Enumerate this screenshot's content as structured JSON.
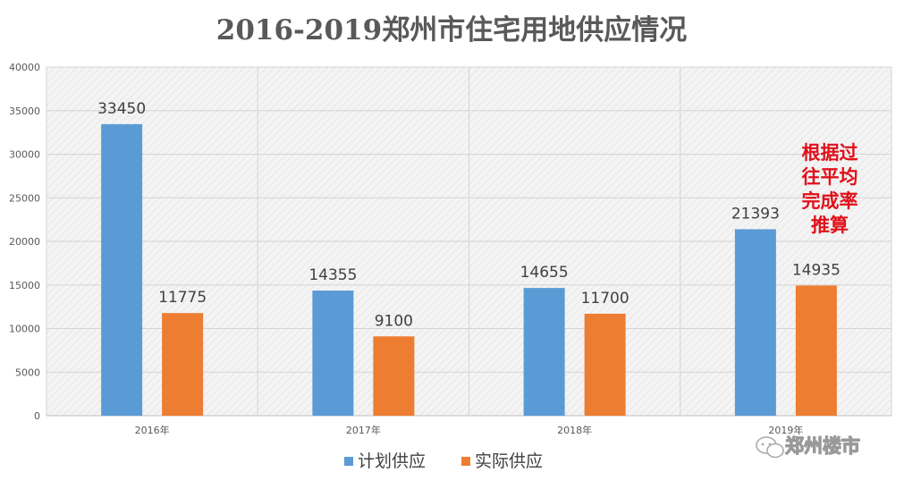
{
  "chart_data": {
    "type": "bar",
    "title": "2016-2019郑州市住宅用地供应情况",
    "xlabel": "",
    "ylabel": "",
    "categories": [
      "2016年",
      "2017年",
      "2018年",
      "2019年"
    ],
    "series": [
      {
        "name": "计划供应",
        "color": "#5b9bd5",
        "values": [
          33450,
          14355,
          14655,
          21393
        ]
      },
      {
        "name": "实际供应",
        "color": "#ed7d31",
        "values": [
          11775,
          9100,
          11700,
          14935
        ]
      }
    ],
    "data_labels": {
      "计划供应": [
        "33450",
        "14355",
        "14655",
        "21393"
      ],
      "实际供应": [
        "11775",
        "9100",
        "11700",
        "14935"
      ]
    },
    "ylim": [
      0,
      40000
    ],
    "yticks": [
      "0",
      "5000",
      "10000",
      "15000",
      "20000",
      "25000",
      "30000",
      "35000",
      "40000"
    ],
    "grid": true,
    "legend_position": "bottom",
    "annotation": {
      "lines": [
        "根据过",
        "往平均",
        "完成率",
        "推算"
      ],
      "color": "#e0101a"
    }
  },
  "watermark": {
    "text": "郑州楼市",
    "icon": "wechat-icon"
  }
}
